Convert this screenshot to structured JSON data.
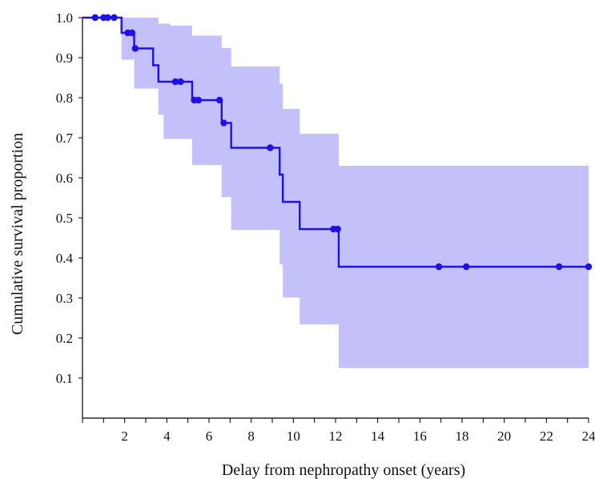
{
  "chart_data": {
    "type": "line",
    "subtype": "kaplan-meier-step",
    "xlabel": "Delay from nephropathy onset (years)",
    "ylabel": "Cumulative survival proportion",
    "xlim": [
      0,
      24
    ],
    "ylim": [
      0,
      1.0
    ],
    "x_ticks": [
      2,
      4,
      6,
      8,
      10,
      12,
      14,
      16,
      18,
      20,
      22,
      24
    ],
    "y_ticks": [
      0.1,
      0.2,
      0.3,
      0.4,
      0.5,
      0.6,
      0.7,
      0.8,
      0.9,
      1.0
    ],
    "y_tick_labels": [
      "0.1",
      "0.2",
      "0.3",
      "0.4",
      "0.5",
      "0.6",
      "0.7",
      "0.8",
      "0.9",
      "1.0"
    ],
    "grid": false,
    "series": [
      {
        "color": "#1f10e8",
        "steps": [
          {
            "x": 0,
            "y": 1.0
          },
          {
            "x": 1.85,
            "y": 0.962
          },
          {
            "x": 2.45,
            "y": 0.923
          },
          {
            "x": 3.35,
            "y": 0.881
          },
          {
            "x": 3.6,
            "y": 0.84
          },
          {
            "x": 5.2,
            "y": 0.794
          },
          {
            "x": 6.6,
            "y": 0.737
          },
          {
            "x": 7.05,
            "y": 0.675
          },
          {
            "x": 9.35,
            "y": 0.608
          },
          {
            "x": 9.5,
            "y": 0.54
          },
          {
            "x": 10.3,
            "y": 0.472
          },
          {
            "x": 12.15,
            "y": 0.378
          }
        ],
        "x_end": 24,
        "censored": [
          {
            "x": 0.6,
            "y": 1.0
          },
          {
            "x": 1.0,
            "y": 1.0
          },
          {
            "x": 1.2,
            "y": 1.0
          },
          {
            "x": 1.5,
            "y": 1.0
          },
          {
            "x": 2.15,
            "y": 0.962
          },
          {
            "x": 2.35,
            "y": 0.962
          },
          {
            "x": 2.5,
            "y": 0.923
          },
          {
            "x": 4.4,
            "y": 0.84
          },
          {
            "x": 4.65,
            "y": 0.84
          },
          {
            "x": 5.3,
            "y": 0.794
          },
          {
            "x": 5.5,
            "y": 0.794
          },
          {
            "x": 6.5,
            "y": 0.794
          },
          {
            "x": 6.7,
            "y": 0.737
          },
          {
            "x": 8.9,
            "y": 0.675
          },
          {
            "x": 11.9,
            "y": 0.472
          },
          {
            "x": 12.1,
            "y": 0.472
          },
          {
            "x": 16.9,
            "y": 0.378
          },
          {
            "x": 18.2,
            "y": 0.378
          },
          {
            "x": 22.6,
            "y": 0.378
          },
          {
            "x": 24.0,
            "y": 0.378
          }
        ],
        "confidence_band": {
          "color": "#c3c0fa",
          "steps": [
            {
              "x": 0,
              "lower": 1.0,
              "upper": 1.0
            },
            {
              "x": 1.85,
              "lower": 0.895,
              "upper": 1.0
            },
            {
              "x": 2.45,
              "lower": 0.823,
              "upper": 1.0
            },
            {
              "x": 3.6,
              "lower": 0.758,
              "upper": 0.985
            },
            {
              "x": 3.85,
              "lower": 0.697,
              "upper": 0.985
            },
            {
              "x": 4.15,
              "lower": 0.697,
              "upper": 0.98
            },
            {
              "x": 5.2,
              "lower": 0.632,
              "upper": 0.955
            },
            {
              "x": 6.6,
              "lower": 0.552,
              "upper": 0.924
            },
            {
              "x": 7.05,
              "lower": 0.47,
              "upper": 0.878
            },
            {
              "x": 9.35,
              "lower": 0.384,
              "upper": 0.835
            },
            {
              "x": 9.5,
              "lower": 0.301,
              "upper": 0.772
            },
            {
              "x": 10.3,
              "lower": 0.234,
              "upper": 0.71
            },
            {
              "x": 12.15,
              "lower": 0.125,
              "upper": 0.63
            }
          ],
          "x_end": 24
        }
      }
    ]
  }
}
